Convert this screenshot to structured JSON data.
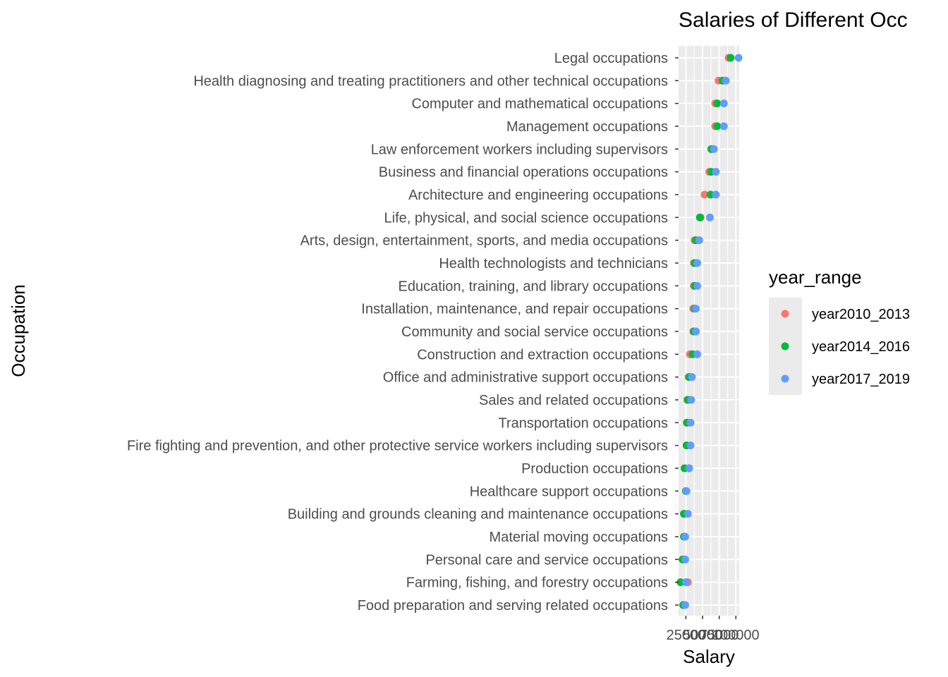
{
  "chart_data": {
    "type": "scatter",
    "title": "Salaries of Different Occ",
    "xlabel": "Salary",
    "ylabel": "Occupation",
    "xlim": [
      14000,
      105000
    ],
    "xticks": [
      25000,
      50000,
      75000,
      100000
    ],
    "xtick_labels": [
      "25000",
      "50000",
      "75000",
      "100000"
    ],
    "grid": true,
    "legend": {
      "title": "year_range",
      "position": "right"
    },
    "categories": [
      "Food preparation and serving related occupations",
      "Farming, fishing, and forestry occupations",
      "Personal care and service occupations",
      "Material moving occupations",
      "Building and grounds cleaning and maintenance occupations",
      "Healthcare support occupations",
      "Production occupations",
      "Fire fighting and prevention, and other protective service workers including supervisors",
      "Transportation occupations",
      "Sales and related occupations",
      "Office and administrative support occupations",
      "Construction and extraction occupations",
      "Community and social service occupations",
      "Installation, maintenance, and repair occupations",
      "Education, training, and library occupations",
      "Health technologists and technicians",
      "Arts, design, entertainment, sports, and media occupations",
      "Life, physical, and social science occupations",
      "Architecture and engineering occupations",
      "Business and financial operations occupations",
      "Law enforcement workers including supervisors",
      "Management occupations",
      "Computer and mathematical occupations",
      "Health diagnosing and treating practitioners and other technical occupations",
      "Legal occupations"
    ],
    "series": [
      {
        "name": "year2010_2013",
        "color": "#F8766D",
        "values": [
          21000,
          28000,
          22000,
          23000,
          22000,
          25000,
          23000,
          26000,
          26000,
          27000,
          29000,
          31000,
          36000,
          36000,
          37000,
          37000,
          38000,
          47000,
          53000,
          60000,
          64000,
          69000,
          69000,
          74000,
          89000
        ]
      },
      {
        "name": "year2014_2016",
        "color": "#00BA38",
        "values": [
          21000,
          17000,
          20000,
          22000,
          22000,
          25000,
          23000,
          26000,
          27000,
          28000,
          30000,
          35000,
          37000,
          38000,
          38000,
          38000,
          40000,
          46000,
          62000,
          63000,
          63000,
          72000,
          72000,
          80000,
          92000
        ]
      },
      {
        "name": "year2017_2019",
        "color": "#619CFF",
        "values": [
          24000,
          25000,
          24000,
          24000,
          28000,
          26000,
          30000,
          32000,
          32000,
          33000,
          34000,
          42000,
          40000,
          40000,
          42000,
          42000,
          45000,
          61000,
          70000,
          70000,
          67000,
          82000,
          82000,
          85000,
          104000
        ]
      }
    ]
  }
}
